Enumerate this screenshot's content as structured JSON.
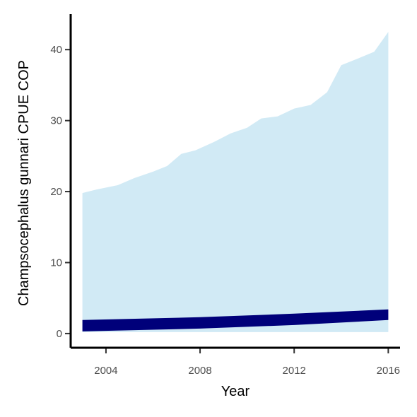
{
  "chart_data": {
    "type": "area",
    "title": "",
    "xlabel": "Year",
    "ylabel": "Champsocephalus gunnari  CPUE COP",
    "xlim": [
      2002.5,
      2016.5
    ],
    "ylim": [
      -2,
      45
    ],
    "grid": false,
    "legend": "none",
    "x_ticks": [
      2004,
      2008,
      2012,
      2016
    ],
    "y_ticks": [
      0,
      10,
      20,
      30,
      40
    ],
    "series": [
      {
        "type": "ribbon",
        "color": "#d1eaf5",
        "x": [
          2003,
          2003.6,
          2004.5,
          2005.2,
          2006,
          2006.6,
          2007.2,
          2007.8,
          2008.6,
          2009.3,
          2010,
          2010.6,
          2011.3,
          2012,
          2012.7,
          2013.4,
          2014,
          2014.6,
          2015.4,
          2016
        ],
        "upper": [
          19.8,
          20.3,
          20.9,
          21.9,
          22.8,
          23.6,
          25.3,
          25.8,
          27.0,
          28.2,
          29.0,
          30.3,
          30.6,
          31.7,
          32.2,
          34.0,
          37.8,
          38.6,
          39.7,
          42.5
        ],
        "lower": [
          0.2,
          0.2,
          0.2,
          0.2,
          0.2,
          0.2,
          0.2,
          0.2,
          0.2,
          0.2,
          0.2,
          0.2,
          0.2,
          0.2,
          0.2,
          0.2,
          0.2,
          0.2,
          0.2,
          0.2
        ]
      },
      {
        "type": "ribbon",
        "color": "#00007a",
        "x": [
          2003,
          2008,
          2012,
          2016
        ],
        "upper": [
          1.9,
          2.3,
          2.8,
          3.4
        ],
        "lower": [
          0.3,
          0.7,
          1.2,
          1.9
        ]
      }
    ]
  }
}
